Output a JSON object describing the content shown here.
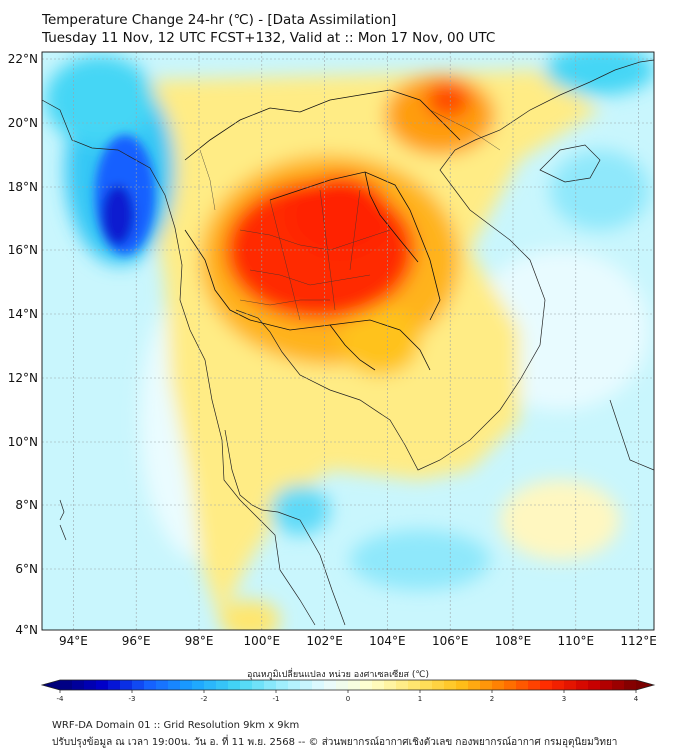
{
  "title": {
    "line1": "Temperature Change 24-hr (℃) - [Data Assimilation]",
    "line2": "Tuesday 11 Nov, 12 UTC FCST+132, Valid at :: Mon 17 Nov, 00 UTC"
  },
  "axes": {
    "lat_labels": [
      "22°N",
      "20°N",
      "18°N",
      "16°N",
      "14°N",
      "12°N",
      "10°N",
      "8°N",
      "6°N",
      "4°N"
    ],
    "lon_labels": [
      "94°E",
      "96°E",
      "98°E",
      "100°E",
      "102°E",
      "104°E",
      "106°E",
      "108°E",
      "110°E",
      "112°E"
    ]
  },
  "colorbar": {
    "title": "อุณหภูมิเปลี่ยนแปลง หน่วย องศาเซลเซียส (℃)",
    "ticks": [
      "-4",
      "-3",
      "-2",
      "-1",
      "0",
      "1",
      "2",
      "3",
      "4"
    ]
  },
  "footer": {
    "line1": "WRF-DA Domain 01 :: Grid Resolution 9km x 9km",
    "line2": "ปรับปรุงข้อมูล ณ เวลา 19:00น. วัน อ. ที่ 11 พ.ย. 2568 -- © ส่วนพยากรณ์อากาศเชิงตัวเลข กองพยากรณ์อากาศ กรมอุตุนิยมวิทยา"
  },
  "colors": {
    "scale": [
      "#00007a",
      "#0000cc",
      "#1560ff",
      "#1aa3ff",
      "#45d6f5",
      "#9feefd",
      "#e8fbff",
      "#ffffcc",
      "#ffe66e",
      "#ffc21a",
      "#ff7a00",
      "#ff2a00",
      "#cc0000",
      "#7a0000"
    ]
  }
}
